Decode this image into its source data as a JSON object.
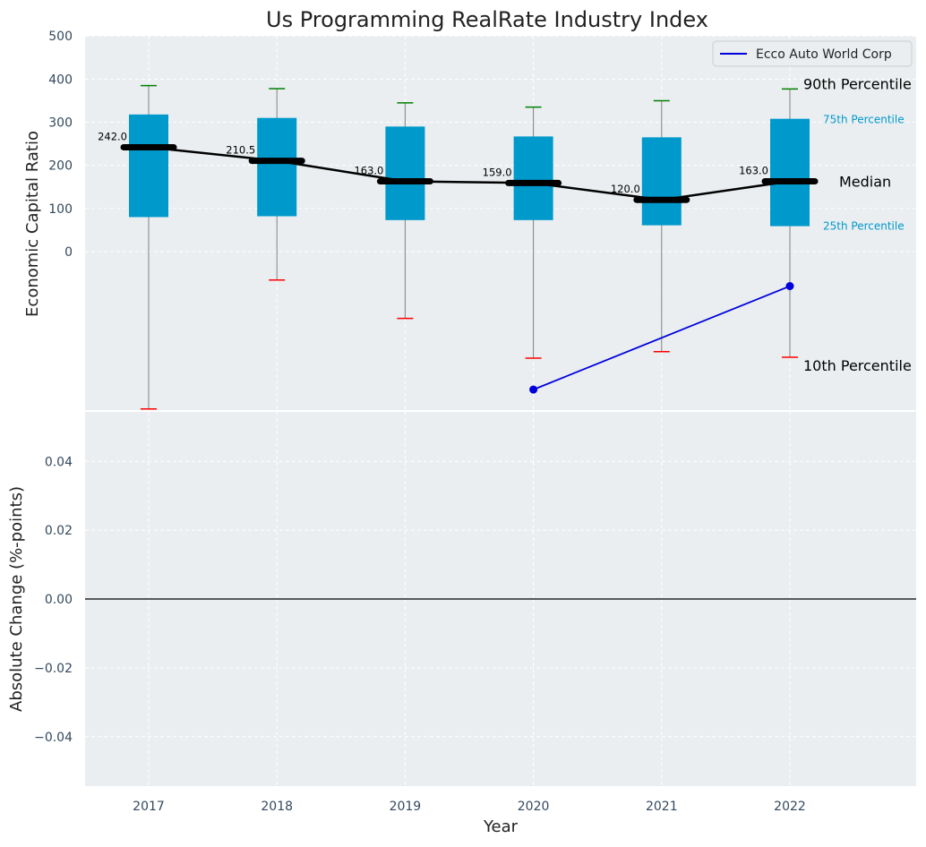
{
  "chart_data": [
    {
      "type": "box",
      "title": "Us Programming RealRate Industry Index",
      "xlabel": "",
      "ylabel": "Economic Capital Ratio",
      "categories": [
        "2017",
        "2018",
        "2019",
        "2020",
        "2021",
        "2022"
      ],
      "ylim": [
        -365,
        500
      ],
      "yticks": [
        0,
        100,
        200,
        300,
        400,
        500
      ],
      "grid": true,
      "boxes": [
        {
          "year": "2017",
          "p10": -365,
          "p25": 80,
          "median": 242,
          "p75": 318,
          "p90": 385
        },
        {
          "year": "2018",
          "p10": -66,
          "p25": 82,
          "median": 210.5,
          "p75": 310,
          "p90": 378
        },
        {
          "year": "2019",
          "p10": -155,
          "p25": 73,
          "median": 163,
          "p75": 290,
          "p90": 345
        },
        {
          "year": "2020",
          "p10": -247,
          "p25": 73,
          "median": 159,
          "p75": 267,
          "p90": 335
        },
        {
          "year": "2021",
          "p10": -232,
          "p25": 61,
          "median": 120,
          "p75": 265,
          "p90": 350
        },
        {
          "year": "2022",
          "p10": -245,
          "p25": 59,
          "median": 163,
          "p75": 308,
          "p90": 377
        }
      ],
      "median_labels": [
        "242.0",
        "210.5",
        "163.0",
        "159.0",
        "120.0",
        "163.0"
      ],
      "series": [
        {
          "name": "Ecco Auto World Corp",
          "x": [
            "2020",
            "2022"
          ],
          "values": [
            -320,
            -80
          ]
        }
      ],
      "legend": {
        "placement": "top-right",
        "entries": [
          "Ecco Auto World Corp"
        ]
      },
      "percentile_labels": {
        "p90": "90th Percentile",
        "p75": "75th Percentile",
        "median": "Median",
        "p25": "25th Percentile",
        "p10": "10th Percentile"
      },
      "colors": {
        "box": "#0099cc",
        "median": "#000000",
        "p90_cap": "#008000",
        "p10_cap": "#ff0000",
        "series": "#0000dd",
        "whisker": "#808080",
        "background": "#eaeef0",
        "percentile_text": "#0099cc"
      }
    },
    {
      "type": "line",
      "xlabel": "Year",
      "ylabel": "Absolute Change (%-points)",
      "categories": [
        "2017",
        "2018",
        "2019",
        "2020",
        "2021",
        "2022"
      ],
      "ylim": [
        -0.055,
        0.055
      ],
      "yticks": [
        "−0.04",
        "−0.02",
        "0.00",
        "0.02",
        "0.04"
      ],
      "ytick_values": [
        -0.04,
        -0.02,
        0,
        0.02,
        0.04
      ],
      "zero_line": true,
      "grid": true,
      "series": []
    }
  ]
}
